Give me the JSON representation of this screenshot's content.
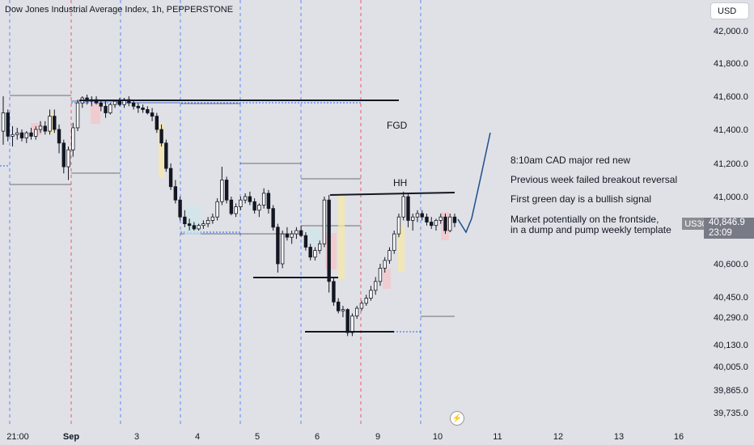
{
  "header": {
    "title": "Dow Jones Industrial Average Index, 1h, PEPPERSTONE",
    "currency": "USD"
  },
  "chart_data": {
    "type": "candlestick",
    "symbol": "US30",
    "last_price": "40,846.9",
    "countdown": "23:09",
    "y_ticks": [
      "42,000.0",
      "41,800.0",
      "41,600.0",
      "41,400.0",
      "41,200.0",
      "41,000.0",
      "40,800.0",
      "40,600.0",
      "40,450.0",
      "40,290.0",
      "40,130.0",
      "40,005.0",
      "39,865.0",
      "39,735.0"
    ],
    "y_tick_values": [
      42000,
      41800,
      41600,
      41400,
      41200,
      41000,
      40800,
      40600,
      40450,
      40290,
      40130,
      40005,
      39865,
      39735
    ],
    "x_ticks": [
      "21:00",
      "Sep",
      "3",
      "4",
      "5",
      "6",
      "9",
      "10",
      "11",
      "12",
      "13",
      "16"
    ],
    "annotations": {
      "fgd": "FGD",
      "hh": "HH",
      "notes": [
        "8:10am CAD major red new",
        "Previous week failed breakout reversal",
        "First green day is a bullish signal",
        "Market potentially on the frontside,",
        "in a dump and pump weekly template"
      ]
    },
    "candles": [
      [
        41390,
        41600,
        41310,
        41500
      ],
      [
        41500,
        41520,
        41330,
        41360
      ],
      [
        41360,
        41420,
        41300,
        41370
      ],
      [
        41370,
        41410,
        41340,
        41380
      ],
      [
        41380,
        41400,
        41330,
        41350
      ],
      [
        41350,
        41390,
        41320,
        41380
      ],
      [
        41380,
        41410,
        41340,
        41360
      ],
      [
        41360,
        41420,
        41340,
        41400
      ],
      [
        41400,
        41450,
        41380,
        41420
      ],
      [
        41420,
        41450,
        41370,
        41390
      ],
      [
        41390,
        41520,
        41370,
        41480
      ],
      [
        41480,
        41520,
        41380,
        41400
      ],
      [
        41400,
        41430,
        41260,
        41320
      ],
      [
        41320,
        41340,
        41140,
        41180
      ],
      [
        41180,
        41300,
        41100,
        41280
      ],
      [
        41280,
        41440,
        41240,
        41410
      ],
      [
        41410,
        41580,
        41390,
        41560
      ],
      [
        41560,
        41600,
        41530,
        41590
      ],
      [
        41590,
        41610,
        41550,
        41570
      ],
      [
        41570,
        41600,
        41540,
        41580
      ],
      [
        41580,
        41600,
        41550,
        41560
      ],
      [
        41560,
        41580,
        41510,
        41540
      ],
      [
        41540,
        41570,
        41470,
        41500
      ],
      [
        41500,
        41560,
        41490,
        41550
      ],
      [
        41550,
        41580,
        41530,
        41570
      ],
      [
        41570,
        41590,
        41540,
        41550
      ],
      [
        41550,
        41590,
        41530,
        41580
      ],
      [
        41580,
        41600,
        41540,
        41560
      ],
      [
        41560,
        41580,
        41520,
        41540
      ],
      [
        41540,
        41560,
        41500,
        41530
      ],
      [
        41530,
        41550,
        41500,
        41520
      ],
      [
        41520,
        41540,
        41490,
        41500
      ],
      [
        41500,
        41530,
        41450,
        41480
      ],
      [
        41480,
        41500,
        41380,
        41400
      ],
      [
        41400,
        41430,
        41300,
        41320
      ],
      [
        41320,
        41340,
        41150,
        41170
      ],
      [
        41170,
        41200,
        41040,
        41060
      ],
      [
        41060,
        41100,
        40960,
        40980
      ],
      [
        40980,
        41000,
        40860,
        40880
      ],
      [
        40880,
        40920,
        40820,
        40840
      ],
      [
        40840,
        40870,
        40800,
        40830
      ],
      [
        40830,
        40850,
        40800,
        40810
      ],
      [
        40810,
        40840,
        40800,
        40830
      ],
      [
        40830,
        40860,
        40810,
        40840
      ],
      [
        40840,
        40880,
        40820,
        40860
      ],
      [
        40860,
        40900,
        40840,
        40880
      ],
      [
        40880,
        40990,
        40860,
        40970
      ],
      [
        40970,
        41180,
        40950,
        41100
      ],
      [
        41100,
        41120,
        40960,
        40980
      ],
      [
        40980,
        41000,
        40890,
        40900
      ],
      [
        40900,
        40960,
        40880,
        40940
      ],
      [
        40940,
        41000,
        40920,
        40980
      ],
      [
        40980,
        41020,
        40960,
        41000
      ],
      [
        41000,
        41030,
        40950,
        40970
      ],
      [
        40970,
        40990,
        40900,
        40920
      ],
      [
        40920,
        40960,
        40880,
        40950
      ],
      [
        40950,
        41050,
        40930,
        41020
      ],
      [
        41020,
        41040,
        40900,
        40930
      ],
      [
        40930,
        40950,
        40800,
        40820
      ],
      [
        40820,
        40840,
        40560,
        40600
      ],
      [
        40600,
        40800,
        40580,
        40780
      ],
      [
        40780,
        40820,
        40740,
        40760
      ],
      [
        40760,
        40800,
        40720,
        40780
      ],
      [
        40780,
        40820,
        40750,
        40800
      ],
      [
        40800,
        40830,
        40760,
        40770
      ],
      [
        40770,
        40790,
        40680,
        40700
      ],
      [
        40700,
        40720,
        40620,
        40640
      ],
      [
        40640,
        40700,
        40620,
        40680
      ],
      [
        40680,
        40740,
        40660,
        40720
      ],
      [
        40720,
        41000,
        40700,
        40980
      ],
      [
        40980,
        41010,
        40470,
        40520
      ],
      [
        40520,
        40540,
        40380,
        40410
      ],
      [
        40410,
        40440,
        40320,
        40340
      ],
      [
        40340,
        40380,
        40290,
        40350
      ],
      [
        40350,
        40360,
        40180,
        40200
      ],
      [
        40200,
        40320,
        40180,
        40300
      ],
      [
        40300,
        40380,
        40280,
        40360
      ],
      [
        40360,
        40420,
        40340,
        40400
      ],
      [
        40400,
        40460,
        40380,
        40440
      ],
      [
        40440,
        40500,
        40420,
        40480
      ],
      [
        40480,
        40540,
        40460,
        40520
      ],
      [
        40520,
        40600,
        40500,
        40580
      ],
      [
        40580,
        40640,
        40560,
        40620
      ],
      [
        40620,
        40700,
        40600,
        40680
      ],
      [
        40680,
        40800,
        40660,
        40780
      ],
      [
        40780,
        40900,
        40760,
        40880
      ],
      [
        40880,
        41030,
        40860,
        41000
      ],
      [
        41000,
        41020,
        40820,
        40860
      ],
      [
        40860,
        40900,
        40800,
        40880
      ],
      [
        40880,
        40920,
        40850,
        40900
      ],
      [
        40900,
        40920,
        40860,
        40880
      ],
      [
        40880,
        40900,
        40830,
        40850
      ],
      [
        40850,
        40880,
        40810,
        40830
      ],
      [
        40830,
        40870,
        40800,
        40860
      ],
      [
        40860,
        40900,
        40840,
        40880
      ],
      [
        40880,
        40900,
        40780,
        40800
      ],
      [
        40800,
        40900,
        40790,
        40880
      ],
      [
        40880,
        40900,
        40820,
        40847
      ]
    ]
  }
}
